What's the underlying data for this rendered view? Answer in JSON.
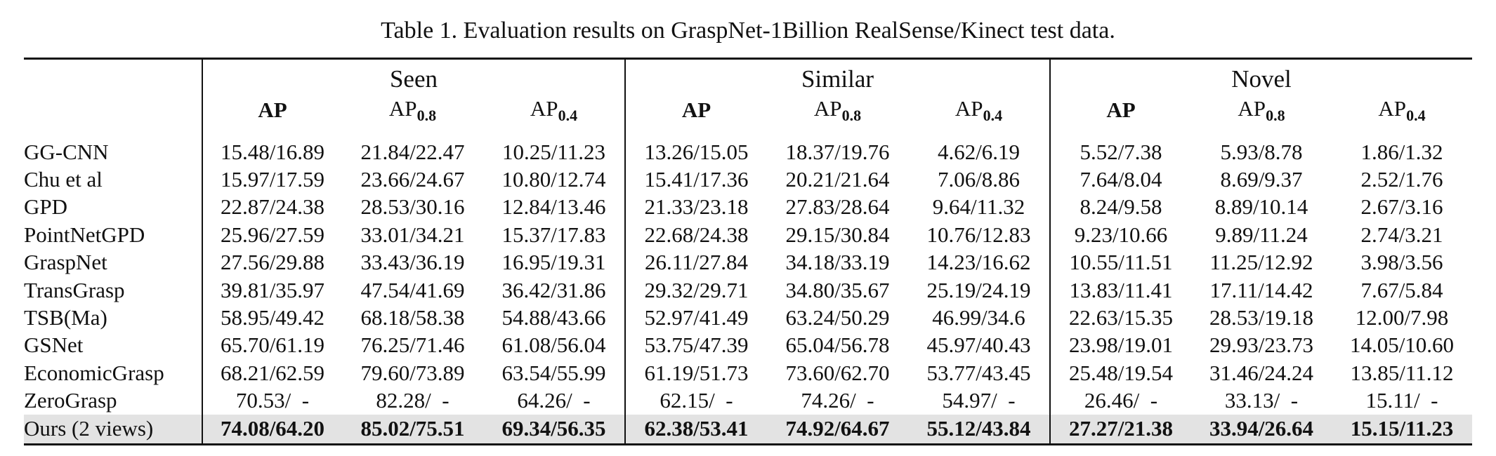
{
  "caption": "Table 1. Evaluation results on GraspNet-1Billion RealSense/Kinect test data.",
  "groups": [
    "Seen",
    "Similar",
    "Novel"
  ],
  "metrics": [
    {
      "base": "AP",
      "sub": ""
    },
    {
      "base": "AP",
      "sub": "0.8"
    },
    {
      "base": "AP",
      "sub": "0.4"
    }
  ],
  "rows": [
    {
      "method": "GG-CNN",
      "values": [
        "15.48/16.89",
        "21.84/22.47",
        "10.25/11.23",
        "13.26/15.05",
        "18.37/19.76",
        "4.62/6.19",
        "5.52/7.38",
        "5.93/8.78",
        "1.86/1.32"
      ]
    },
    {
      "method": "Chu et al",
      "values": [
        "15.97/17.59",
        "23.66/24.67",
        "10.80/12.74",
        "15.41/17.36",
        "20.21/21.64",
        "7.06/8.86",
        "7.64/8.04",
        "8.69/9.37",
        "2.52/1.76"
      ]
    },
    {
      "method": "GPD",
      "values": [
        "22.87/24.38",
        "28.53/30.16",
        "12.84/13.46",
        "21.33/23.18",
        "27.83/28.64",
        "9.64/11.32",
        "8.24/9.58",
        "8.89/10.14",
        "2.67/3.16"
      ]
    },
    {
      "method": "PointNetGPD",
      "values": [
        "25.96/27.59",
        "33.01/34.21",
        "15.37/17.83",
        "22.68/24.38",
        "29.15/30.84",
        "10.76/12.83",
        "9.23/10.66",
        "9.89/11.24",
        "2.74/3.21"
      ]
    },
    {
      "method": "GraspNet",
      "values": [
        "27.56/29.88",
        "33.43/36.19",
        "16.95/19.31",
        "26.11/27.84",
        "34.18/33.19",
        "14.23/16.62",
        "10.55/11.51",
        "11.25/12.92",
        "3.98/3.56"
      ]
    },
    {
      "method": "TransGrasp",
      "values": [
        "39.81/35.97",
        "47.54/41.69",
        "36.42/31.86",
        "29.32/29.71",
        "34.80/35.67",
        "25.19/24.19",
        "13.83/11.41",
        "17.11/14.42",
        "7.67/5.84"
      ]
    },
    {
      "method": "TSB(Ma)",
      "values": [
        "58.95/49.42",
        "68.18/58.38",
        "54.88/43.66",
        "52.97/41.49",
        "63.24/50.29",
        "46.99/34.6",
        "22.63/15.35",
        "28.53/19.18",
        "12.00/7.98"
      ]
    },
    {
      "method": "GSNet",
      "values": [
        "65.70/61.19",
        "76.25/71.46",
        "61.08/56.04",
        "53.75/47.39",
        "65.04/56.78",
        "45.97/40.43",
        "23.98/19.01",
        "29.93/23.73",
        "14.05/10.60"
      ]
    },
    {
      "method": "EconomicGrasp",
      "values": [
        "68.21/62.59",
        "79.60/73.89",
        "63.54/55.99",
        "61.19/51.73",
        "73.60/62.70",
        "53.77/43.45",
        "25.48/19.54",
        "31.46/24.24",
        "13.85/11.12"
      ]
    },
    {
      "method": "ZeroGrasp",
      "values": [
        "70.53/  -",
        "82.28/  -",
        "64.26/  -",
        "62.15/  -",
        "74.26/  -",
        "54.97/  -",
        "26.46/  -",
        "33.13/  -",
        "15.11/  -"
      ]
    }
  ],
  "ours": {
    "method": "Ours (2 views)",
    "values": [
      "74.08/64.20",
      "85.02/75.51",
      "69.34/56.35",
      "62.38/53.41",
      "74.92/64.67",
      "55.12/43.84",
      "27.27/21.38",
      "33.94/26.64",
      "15.15/11.23"
    ]
  }
}
